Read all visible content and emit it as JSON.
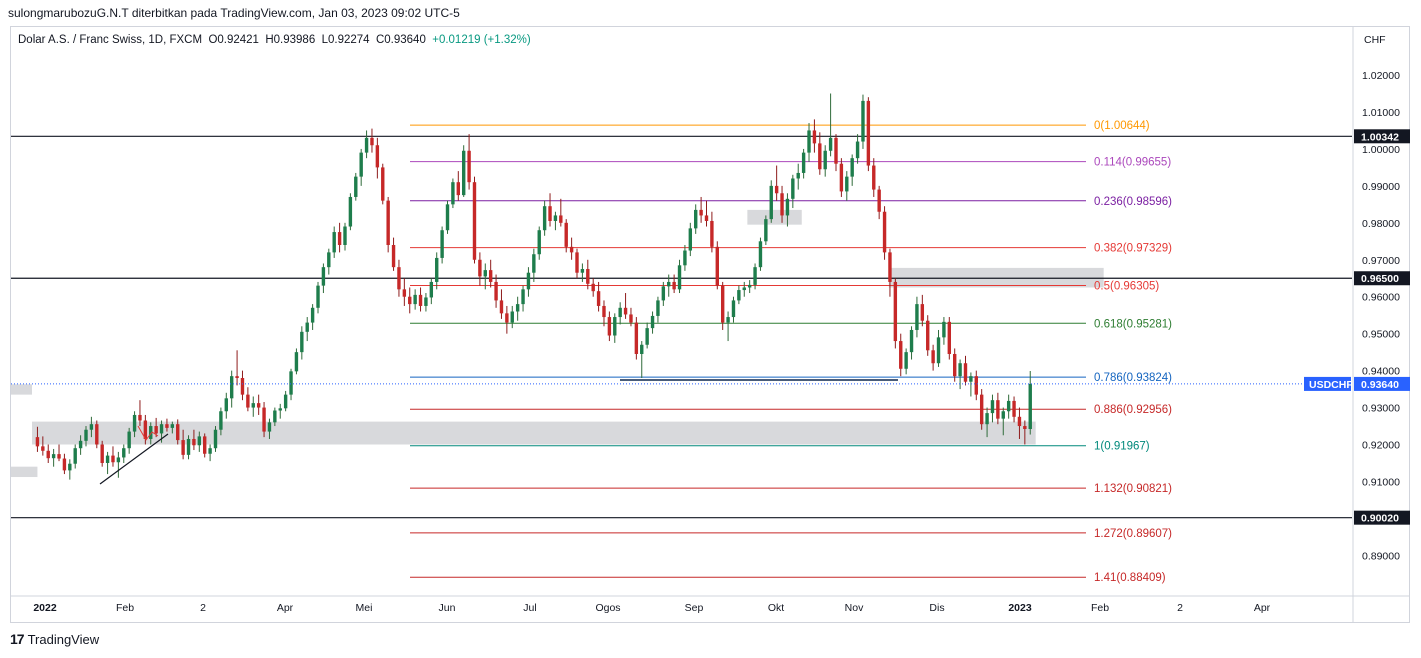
{
  "header": {
    "publisher": "sulongmarubozuG.N.T diterbitkan pada TradingView.com, Jan 03, 2023 09:02 UTC-5"
  },
  "legend": {
    "symbol": "Dolar A.S. / Franc Swiss, 1D, FXCM",
    "open": "O0.92421",
    "high": "H0.93986",
    "low": "L0.92274",
    "close": "C0.93640",
    "change": "+0.01219 (+1.32%)"
  },
  "footer": {
    "brand": "TradingView"
  },
  "colors": {
    "up": "#26a69a",
    "upBody": "#1e7d4c",
    "down": "#ef5350",
    "downBody": "#c62828",
    "ticker": "#2962ff",
    "fib0": "#ff9800"
  },
  "chart_data": {
    "type": "candlestick",
    "currency": "CHF",
    "ylim": [
      0.879,
      1.033
    ],
    "y_ticks": [
      "1.02000",
      "1.01000",
      "1.00000",
      "0.99000",
      "0.98000",
      "0.97000",
      "0.96000",
      "0.95000",
      "0.94000",
      "0.93000",
      "0.92000",
      "0.91000",
      "0.89000"
    ],
    "x_tick_labels": [
      "2022",
      "Feb",
      "2",
      "Apr",
      "Mei",
      "Jun",
      "Jul",
      "Ogos",
      "Sep",
      "Okt",
      "Nov",
      "Dis",
      "2023",
      "Feb",
      "2",
      "Apr"
    ],
    "horizontal_levels": [
      {
        "price": 1.00342,
        "label": "1.00342"
      },
      {
        "price": 0.965,
        "label": "0.96500"
      },
      {
        "price": 0.9002,
        "label": "0.90020"
      }
    ],
    "last_price": {
      "symbol": "USDCHF",
      "price": 0.9364,
      "label": "0.93640"
    },
    "fibonacci": [
      {
        "label": "0(1.00644)",
        "price": 1.00644,
        "color": "#ff9800"
      },
      {
        "label": "0.114(0.99655)",
        "price": 0.99655,
        "color": "#ab47bc"
      },
      {
        "label": "0.236(0.98596)",
        "price": 0.98596,
        "color": "#7b1fa2"
      },
      {
        "label": "0.382(0.97329)",
        "price": 0.97329,
        "color": "#e53935"
      },
      {
        "label": "0.5(0.96305)",
        "price": 0.96305,
        "color": "#e53935"
      },
      {
        "label": "0.618(0.95281)",
        "price": 0.95281,
        "color": "#2e7d32"
      },
      {
        "label": "0.786(0.93824)",
        "price": 0.93824,
        "color": "#1565c0"
      },
      {
        "label": "0.886(0.92956)",
        "price": 0.92956,
        "color": "#c62828"
      },
      {
        "label": "1(0.91967)",
        "price": 0.91967,
        "color": "#00897b"
      },
      {
        "label": "1.132(0.90821)",
        "price": 0.90821,
        "color": "#c62828"
      },
      {
        "label": "1.272(0.89607)",
        "price": 0.89607,
        "color": "#c62828"
      },
      {
        "label": "1.41(0.88409)",
        "price": 0.88409,
        "color": "#c62828"
      }
    ],
    "zones": [
      {
        "from": "2022-01-01",
        "to": "2023-01-05",
        "top": 0.9262,
        "bottom": 0.92
      },
      {
        "from": "2022-11-12",
        "to": "2023-01-30",
        "top": 0.9678,
        "bottom": 0.9625
      },
      {
        "from": "2022-09-21",
        "to": "2022-10-11",
        "top": 0.9835,
        "bottom": 0.9795
      },
      {
        "from": "2021-12-20",
        "to": "2022-01-01",
        "top": 0.9363,
        "bottom": 0.9335
      },
      {
        "from": "2021-12-20",
        "to": "2022-01-03",
        "top": 0.914,
        "bottom": 0.9112
      }
    ],
    "candles": [
      [
        0.922,
        0.9248,
        0.918,
        0.9195
      ],
      [
        0.9195,
        0.9222,
        0.917,
        0.9183
      ],
      [
        0.9183,
        0.92,
        0.915,
        0.9163
      ],
      [
        0.9163,
        0.9188,
        0.914,
        0.9174
      ],
      [
        0.9174,
        0.92,
        0.9155,
        0.9162
      ],
      [
        0.9162,
        0.9175,
        0.912,
        0.913
      ],
      [
        0.913,
        0.916,
        0.9105,
        0.9148
      ],
      [
        0.9148,
        0.92,
        0.9135,
        0.919
      ],
      [
        0.919,
        0.9225,
        0.9172,
        0.921
      ],
      [
        0.921,
        0.925,
        0.9195,
        0.924
      ],
      [
        0.924,
        0.9275,
        0.922,
        0.9255
      ],
      [
        0.9255,
        0.9265,
        0.919,
        0.92
      ],
      [
        0.92,
        0.921,
        0.914,
        0.915
      ],
      [
        0.915,
        0.918,
        0.912,
        0.917
      ],
      [
        0.917,
        0.9195,
        0.914,
        0.9152
      ],
      [
        0.9152,
        0.918,
        0.911,
        0.9165
      ],
      [
        0.9165,
        0.92,
        0.915,
        0.919
      ],
      [
        0.919,
        0.9245,
        0.9175,
        0.9235
      ],
      [
        0.9235,
        0.929,
        0.922,
        0.928
      ],
      [
        0.928,
        0.932,
        0.925,
        0.9265
      ],
      [
        0.9265,
        0.928,
        0.92,
        0.9215
      ],
      [
        0.9215,
        0.926,
        0.92,
        0.925
      ],
      [
        0.925,
        0.9272,
        0.922,
        0.923
      ],
      [
        0.923,
        0.9265,
        0.9205,
        0.9255
      ],
      [
        0.9255,
        0.927,
        0.9235,
        0.9245
      ],
      [
        0.9245,
        0.9262,
        0.923,
        0.9255
      ],
      [
        0.9255,
        0.9268,
        0.92,
        0.9212
      ],
      [
        0.9212,
        0.924,
        0.916,
        0.9172
      ],
      [
        0.9172,
        0.9225,
        0.916,
        0.9215
      ],
      [
        0.9215,
        0.924,
        0.9185,
        0.9198
      ],
      [
        0.9198,
        0.9235,
        0.918,
        0.9222
      ],
      [
        0.9222,
        0.923,
        0.9165,
        0.9175
      ],
      [
        0.9175,
        0.92,
        0.9155,
        0.919
      ],
      [
        0.919,
        0.925,
        0.918,
        0.924
      ],
      [
        0.924,
        0.93,
        0.9225,
        0.929
      ],
      [
        0.929,
        0.934,
        0.927,
        0.9325
      ],
      [
        0.9325,
        0.94,
        0.93,
        0.9385
      ],
      [
        0.9385,
        0.9455,
        0.936,
        0.938
      ],
      [
        0.938,
        0.94,
        0.932,
        0.9335
      ],
      [
        0.9335,
        0.9355,
        0.929,
        0.93
      ],
      [
        0.93,
        0.933,
        0.9275,
        0.9312
      ],
      [
        0.9312,
        0.9335,
        0.928,
        0.93
      ],
      [
        0.93,
        0.9315,
        0.922,
        0.9235
      ],
      [
        0.9235,
        0.927,
        0.9215,
        0.926
      ],
      [
        0.926,
        0.93,
        0.925,
        0.9292
      ],
      [
        0.9292,
        0.931,
        0.927,
        0.9298
      ],
      [
        0.9298,
        0.9345,
        0.929,
        0.9335
      ],
      [
        0.9335,
        0.9405,
        0.932,
        0.9398
      ],
      [
        0.9398,
        0.946,
        0.939,
        0.945
      ],
      [
        0.945,
        0.952,
        0.943,
        0.9505
      ],
      [
        0.9505,
        0.9545,
        0.948,
        0.953
      ],
      [
        0.953,
        0.958,
        0.951,
        0.957
      ],
      [
        0.957,
        0.964,
        0.9555,
        0.963
      ],
      [
        0.963,
        0.969,
        0.961,
        0.968
      ],
      [
        0.968,
        0.973,
        0.966,
        0.972
      ],
      [
        0.972,
        0.979,
        0.9705,
        0.9775
      ],
      [
        0.9775,
        0.98,
        0.972,
        0.974
      ],
      [
        0.974,
        0.98,
        0.9725,
        0.979
      ],
      [
        0.979,
        0.988,
        0.978,
        0.987
      ],
      [
        0.987,
        0.9935,
        0.986,
        0.9925
      ],
      [
        0.9925,
        1.0,
        0.99,
        0.999
      ],
      [
        0.999,
        1.005,
        0.9975,
        1.003
      ],
      [
        1.003,
        1.0055,
        0.999,
        1.001
      ],
      [
        1.001,
        1.003,
        0.992,
        0.995
      ],
      [
        0.995,
        0.996,
        0.985,
        0.986
      ],
      [
        0.986,
        0.987,
        0.972,
        0.974
      ],
      [
        0.974,
        0.976,
        0.967,
        0.968
      ],
      [
        0.968,
        0.97,
        0.96,
        0.962
      ],
      [
        0.962,
        0.965,
        0.9575,
        0.96
      ],
      [
        0.96,
        0.9625,
        0.9555,
        0.958
      ],
      [
        0.958,
        0.962,
        0.9565,
        0.9605
      ],
      [
        0.9605,
        0.9625,
        0.956,
        0.9575
      ],
      [
        0.9575,
        0.961,
        0.956,
        0.9598
      ],
      [
        0.9598,
        0.965,
        0.958,
        0.964
      ],
      [
        0.964,
        0.972,
        0.962,
        0.9705
      ],
      [
        0.9705,
        0.979,
        0.969,
        0.978
      ],
      [
        0.978,
        0.986,
        0.977,
        0.985
      ],
      [
        0.985,
        0.992,
        0.984,
        0.991
      ],
      [
        0.991,
        0.994,
        0.986,
        0.9875
      ],
      [
        0.9875,
        1.001,
        0.987,
        0.9995
      ],
      [
        0.9995,
        1.004,
        0.989,
        0.991
      ],
      [
        0.991,
        0.9925,
        0.969,
        0.97
      ],
      [
        0.97,
        0.972,
        0.963,
        0.9655
      ],
      [
        0.9655,
        0.969,
        0.962,
        0.9672
      ],
      [
        0.9672,
        0.97,
        0.9625,
        0.964
      ],
      [
        0.964,
        0.966,
        0.957,
        0.959
      ],
      [
        0.959,
        0.962,
        0.954,
        0.9555
      ],
      [
        0.9555,
        0.9575,
        0.95,
        0.953
      ],
      [
        0.953,
        0.9575,
        0.9515,
        0.956
      ],
      [
        0.956,
        0.96,
        0.9535,
        0.958
      ],
      [
        0.958,
        0.963,
        0.956,
        0.962
      ],
      [
        0.962,
        0.968,
        0.96,
        0.9665
      ],
      [
        0.9665,
        0.973,
        0.964,
        0.9715
      ],
      [
        0.9715,
        0.979,
        0.97,
        0.978
      ],
      [
        0.978,
        0.986,
        0.9765,
        0.9845
      ],
      [
        0.9845,
        0.988,
        0.979,
        0.9805
      ],
      [
        0.9805,
        0.983,
        0.978,
        0.982
      ],
      [
        0.982,
        0.9865,
        0.979,
        0.98
      ],
      [
        0.98,
        0.981,
        0.972,
        0.9735
      ],
      [
        0.9735,
        0.976,
        0.97,
        0.972
      ],
      [
        0.972,
        0.973,
        0.965,
        0.9665
      ],
      [
        0.9665,
        0.969,
        0.964,
        0.9675
      ],
      [
        0.9675,
        0.97,
        0.962,
        0.9635
      ],
      [
        0.9635,
        0.965,
        0.96,
        0.9615
      ],
      [
        0.9615,
        0.964,
        0.956,
        0.9575
      ],
      [
        0.9575,
        0.959,
        0.952,
        0.9545
      ],
      [
        0.9545,
        0.956,
        0.948,
        0.9495
      ],
      [
        0.9495,
        0.9555,
        0.9475,
        0.9545
      ],
      [
        0.9545,
        0.9585,
        0.9525,
        0.957
      ],
      [
        0.957,
        0.961,
        0.954,
        0.9552
      ],
      [
        0.9552,
        0.957,
        0.952,
        0.953
      ],
      [
        0.953,
        0.9545,
        0.943,
        0.9445
      ],
      [
        0.9445,
        0.948,
        0.938,
        0.947
      ],
      [
        0.947,
        0.953,
        0.946,
        0.9515
      ],
      [
        0.9515,
        0.956,
        0.95,
        0.9548
      ],
      [
        0.9548,
        0.96,
        0.953,
        0.959
      ],
      [
        0.959,
        0.964,
        0.9575,
        0.9628
      ],
      [
        0.9628,
        0.966,
        0.96,
        0.964
      ],
      [
        0.964,
        0.966,
        0.961,
        0.962
      ],
      [
        0.962,
        0.97,
        0.961,
        0.9685
      ],
      [
        0.9685,
        0.974,
        0.967,
        0.9725
      ],
      [
        0.9725,
        0.98,
        0.971,
        0.9785
      ],
      [
        0.9785,
        0.985,
        0.977,
        0.9835
      ],
      [
        0.9835,
        0.987,
        0.98,
        0.982
      ],
      [
        0.982,
        0.986,
        0.979,
        0.9805
      ],
      [
        0.9805,
        0.983,
        0.972,
        0.9735
      ],
      [
        0.9735,
        0.975,
        0.962,
        0.963
      ],
      [
        0.963,
        0.964,
        0.951,
        0.953
      ],
      [
        0.953,
        0.956,
        0.948,
        0.9545
      ],
      [
        0.9545,
        0.96,
        0.953,
        0.959
      ],
      [
        0.959,
        0.963,
        0.958,
        0.9618
      ],
      [
        0.9618,
        0.964,
        0.96,
        0.9625
      ],
      [
        0.9625,
        0.9645,
        0.961,
        0.9632
      ],
      [
        0.9632,
        0.969,
        0.962,
        0.968
      ],
      [
        0.968,
        0.976,
        0.967,
        0.975
      ],
      [
        0.975,
        0.982,
        0.974,
        0.981
      ],
      [
        0.981,
        0.9915,
        0.98,
        0.99
      ],
      [
        0.99,
        0.9955,
        0.986,
        0.988
      ],
      [
        0.988,
        0.99,
        0.98,
        0.982
      ],
      [
        0.982,
        0.988,
        0.979,
        0.9865
      ],
      [
        0.9865,
        0.993,
        0.984,
        0.992
      ],
      [
        0.992,
        0.996,
        0.989,
        0.9935
      ],
      [
        0.9935,
        1.0,
        0.992,
        0.999
      ],
      [
        0.999,
        1.007,
        0.9965,
        1.005
      ],
      [
        1.005,
        1.008,
        0.999,
        1.0015
      ],
      [
        1.0015,
        1.0045,
        0.993,
        0.9945
      ],
      [
        0.9945,
        1.001,
        0.9925,
        0.9995
      ],
      [
        0.9995,
        1.015,
        0.998,
        1.003
      ],
      [
        1.003,
        1.004,
        0.994,
        0.996
      ],
      [
        0.996,
        0.9975,
        0.987,
        0.9885
      ],
      [
        0.9885,
        0.994,
        0.986,
        0.9925
      ],
      [
        0.9925,
        0.9985,
        0.99,
        0.9975
      ],
      [
        0.9975,
        1.004,
        0.996,
        1.002
      ],
      [
        1.002,
        1.0147,
        1.0,
        1.013
      ],
      [
        1.013,
        1.014,
        0.994,
        0.9955
      ],
      [
        0.9955,
        0.9975,
        0.987,
        0.989
      ],
      [
        0.989,
        0.99,
        0.981,
        0.983
      ],
      [
        0.983,
        0.9845,
        0.97,
        0.972
      ],
      [
        0.972,
        0.973,
        0.96,
        0.964
      ],
      [
        0.964,
        0.965,
        0.946,
        0.948
      ],
      [
        0.948,
        0.95,
        0.9385,
        0.9405
      ],
      [
        0.9405,
        0.946,
        0.939,
        0.945
      ],
      [
        0.945,
        0.952,
        0.943,
        0.951
      ],
      [
        0.951,
        0.96,
        0.949,
        0.958
      ],
      [
        0.958,
        0.9605,
        0.952,
        0.9535
      ],
      [
        0.9535,
        0.955,
        0.944,
        0.9455
      ],
      [
        0.9455,
        0.947,
        0.94,
        0.942
      ],
      [
        0.942,
        0.951,
        0.941,
        0.949
      ],
      [
        0.949,
        0.9545,
        0.947,
        0.9532
      ],
      [
        0.9532,
        0.9545,
        0.943,
        0.9445
      ],
      [
        0.9445,
        0.946,
        0.937,
        0.9385
      ],
      [
        0.9385,
        0.943,
        0.935,
        0.942
      ],
      [
        0.942,
        0.944,
        0.936,
        0.937
      ],
      [
        0.937,
        0.9395,
        0.933,
        0.9385
      ],
      [
        0.9385,
        0.94,
        0.932,
        0.9335
      ],
      [
        0.9335,
        0.935,
        0.924,
        0.9255
      ],
      [
        0.9255,
        0.93,
        0.922,
        0.9285
      ],
      [
        0.9285,
        0.9335,
        0.926,
        0.932
      ],
      [
        0.932,
        0.934,
        0.9255,
        0.927
      ],
      [
        0.927,
        0.93,
        0.9225,
        0.929
      ],
      [
        0.929,
        0.9335,
        0.927,
        0.9318
      ],
      [
        0.9318,
        0.933,
        0.926,
        0.9275
      ],
      [
        0.9275,
        0.93,
        0.9215,
        0.925
      ],
      [
        0.925,
        0.9265,
        0.92,
        0.9242
      ],
      [
        0.9242,
        0.9399,
        0.9227,
        0.9364
      ]
    ]
  }
}
